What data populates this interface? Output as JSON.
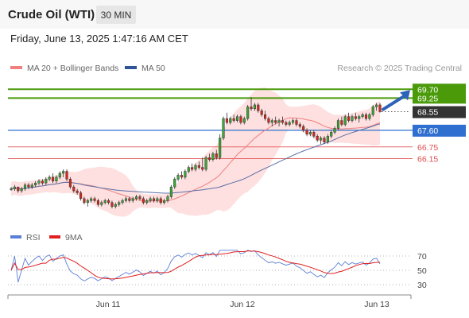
{
  "header": {
    "title": "Crude Oil (WTI)",
    "timeframe_label": "30 MIN",
    "datetime": "Friday, June 13, 2025 1:47:16 AM CET"
  },
  "legend": {
    "ma20_label": "MA 20 + Bollinger Bands",
    "ma50_label": "MA 50",
    "copyright": "Research © 2025 Trading Central"
  },
  "colors": {
    "accent_green": "#4a9a0a",
    "support_blue": "#2f6fcf",
    "resistance_red": "#e05050",
    "current_price": "#333333",
    "arrow": "#2d62b8",
    "bollinger": "#fde0df",
    "ma20": "#f08080",
    "ma50": "#5a6fa8",
    "rsi": "#5b7fd6",
    "rsi_ma": "#e02020"
  },
  "chart_data": [
    {
      "type": "candlestick",
      "title": "Crude Oil (WTI)",
      "timeframe": "30 MIN",
      "x_ticks": [
        "Jun 11",
        "Jun 12",
        "Jun 13"
      ],
      "price_levels": [
        {
          "label": "69.70",
          "value": 69.7,
          "kind": "target",
          "color": "#4a9a0a"
        },
        {
          "label": "69.25",
          "value": 69.25,
          "kind": "target",
          "color": "#4a9a0a"
        },
        {
          "label": "68.55",
          "value": 68.55,
          "kind": "current",
          "color": "#333333"
        },
        {
          "label": "67.60",
          "value": 67.6,
          "kind": "pivot",
          "color": "#2f6fcf"
        },
        {
          "label": "66.75",
          "value": 66.75,
          "kind": "support",
          "color": "#e05050"
        },
        {
          "label": "66.15",
          "value": 66.15,
          "kind": "support",
          "color": "#e05050"
        }
      ],
      "series": [
        {
          "name": "MA 20 + Bollinger Bands",
          "kind": "ma20_bollinger"
        },
        {
          "name": "MA 50",
          "kind": "ma50"
        }
      ],
      "candles": [
        [
          64.6,
          64.7,
          64.5,
          64.6
        ],
        [
          64.6,
          64.8,
          64.5,
          64.7
        ],
        [
          64.7,
          64.7,
          64.4,
          64.5
        ],
        [
          64.5,
          64.7,
          64.4,
          64.6
        ],
        [
          64.6,
          64.9,
          64.5,
          64.8
        ],
        [
          64.8,
          64.9,
          64.6,
          64.7
        ],
        [
          64.7,
          64.9,
          64.6,
          64.8
        ],
        [
          64.8,
          65.0,
          64.7,
          64.9
        ],
        [
          64.9,
          65.1,
          64.8,
          65.0
        ],
        [
          65.0,
          65.1,
          64.8,
          64.9
        ],
        [
          64.9,
          65.2,
          64.8,
          65.1
        ],
        [
          65.1,
          65.3,
          65.0,
          65.2
        ],
        [
          65.2,
          65.4,
          64.9,
          65.0
        ],
        [
          65.0,
          65.3,
          64.9,
          65.2
        ],
        [
          65.2,
          65.5,
          65.1,
          65.4
        ],
        [
          65.4,
          65.6,
          65.2,
          65.5
        ],
        [
          65.5,
          65.6,
          65.0,
          65.1
        ],
        [
          65.1,
          65.2,
          64.6,
          64.7
        ],
        [
          64.7,
          64.8,
          64.4,
          64.5
        ],
        [
          64.5,
          64.6,
          64.3,
          64.4
        ],
        [
          64.4,
          64.5,
          64.0,
          64.1
        ],
        [
          64.1,
          64.2,
          63.8,
          63.9
        ],
        [
          63.9,
          64.1,
          63.7,
          64.0
        ],
        [
          64.0,
          64.2,
          63.9,
          64.1
        ],
        [
          64.1,
          64.2,
          63.9,
          64.0
        ],
        [
          64.0,
          64.1,
          63.7,
          63.8
        ],
        [
          63.8,
          64.0,
          63.7,
          63.9
        ],
        [
          63.9,
          64.1,
          63.8,
          64.0
        ],
        [
          64.0,
          64.1,
          63.8,
          63.9
        ],
        [
          63.9,
          64.0,
          63.6,
          63.7
        ],
        [
          63.7,
          63.9,
          63.6,
          63.8
        ],
        [
          63.8,
          64.0,
          63.7,
          63.9
        ],
        [
          63.9,
          64.1,
          63.8,
          64.0
        ],
        [
          64.0,
          64.2,
          63.9,
          64.1
        ],
        [
          64.1,
          64.2,
          63.9,
          64.0
        ],
        [
          64.0,
          64.2,
          63.9,
          64.1
        ],
        [
          64.1,
          64.3,
          64.0,
          64.2
        ],
        [
          64.2,
          64.3,
          64.0,
          64.1
        ],
        [
          64.1,
          64.2,
          63.8,
          63.9
        ],
        [
          63.9,
          64.1,
          63.8,
          64.0
        ],
        [
          64.0,
          64.2,
          63.9,
          64.1
        ],
        [
          64.1,
          64.2,
          63.9,
          64.0
        ],
        [
          64.0,
          64.2,
          63.9,
          64.1
        ],
        [
          64.1,
          64.2,
          63.8,
          63.9
        ],
        [
          63.9,
          64.1,
          63.8,
          64.0
        ],
        [
          64.0,
          64.3,
          63.9,
          64.2
        ],
        [
          64.2,
          64.8,
          64.1,
          64.7
        ],
        [
          64.7,
          65.2,
          64.6,
          65.1
        ],
        [
          65.1,
          65.4,
          65.0,
          65.3
        ],
        [
          65.3,
          65.5,
          65.1,
          65.2
        ],
        [
          65.2,
          65.6,
          65.1,
          65.5
        ],
        [
          65.5,
          65.8,
          65.4,
          65.7
        ],
        [
          65.7,
          65.9,
          65.5,
          65.6
        ],
        [
          65.6,
          65.9,
          65.5,
          65.8
        ],
        [
          65.8,
          66.0,
          65.6,
          65.7
        ],
        [
          65.7,
          66.2,
          65.5,
          65.6
        ],
        [
          65.6,
          66.3,
          65.5,
          66.2
        ],
        [
          66.2,
          66.4,
          66.0,
          66.1
        ],
        [
          66.1,
          66.5,
          66.0,
          66.4
        ],
        [
          66.4,
          66.6,
          66.1,
          66.2
        ],
        [
          66.2,
          67.4,
          66.1,
          67.2
        ],
        [
          67.2,
          68.3,
          67.1,
          68.2
        ],
        [
          68.2,
          68.5,
          67.9,
          68.0
        ],
        [
          68.0,
          68.3,
          67.9,
          68.2
        ],
        [
          68.2,
          68.4,
          68.0,
          68.1
        ],
        [
          68.1,
          68.4,
          68.0,
          68.3
        ],
        [
          68.3,
          68.4,
          67.9,
          68.0
        ],
        [
          68.0,
          68.3,
          67.9,
          68.2
        ],
        [
          68.2,
          68.9,
          68.1,
          68.8
        ],
        [
          68.8,
          69.3,
          68.6,
          68.7
        ],
        [
          68.7,
          69.0,
          68.6,
          68.9
        ],
        [
          68.9,
          69.0,
          68.5,
          68.6
        ],
        [
          68.6,
          68.7,
          68.3,
          68.4
        ],
        [
          68.4,
          68.6,
          68.1,
          68.2
        ],
        [
          68.2,
          68.3,
          67.9,
          68.0
        ],
        [
          68.0,
          68.2,
          67.8,
          68.1
        ],
        [
          68.1,
          68.3,
          67.9,
          68.0
        ],
        [
          68.0,
          68.2,
          67.8,
          68.1
        ],
        [
          68.1,
          68.3,
          67.9,
          68.0
        ],
        [
          68.0,
          68.1,
          67.8,
          67.9
        ],
        [
          67.9,
          68.1,
          67.8,
          68.0
        ],
        [
          68.0,
          68.2,
          67.9,
          68.1
        ],
        [
          68.1,
          68.2,
          67.8,
          67.9
        ],
        [
          67.9,
          68.0,
          67.7,
          67.8
        ],
        [
          67.8,
          67.9,
          67.5,
          67.6
        ],
        [
          67.6,
          67.7,
          67.3,
          67.4
        ],
        [
          67.4,
          67.6,
          67.3,
          67.5
        ],
        [
          67.5,
          67.6,
          67.2,
          67.3
        ],
        [
          67.3,
          67.4,
          67.0,
          67.1
        ],
        [
          67.1,
          67.3,
          66.9,
          67.2
        ],
        [
          67.2,
          67.3,
          66.9,
          67.0
        ],
        [
          67.0,
          67.4,
          66.9,
          67.3
        ],
        [
          67.3,
          67.6,
          67.2,
          67.5
        ],
        [
          67.5,
          67.8,
          67.4,
          67.7
        ],
        [
          67.7,
          68.2,
          67.6,
          68.1
        ],
        [
          68.1,
          68.3,
          67.8,
          67.9
        ],
        [
          67.9,
          68.4,
          67.8,
          68.3
        ],
        [
          68.3,
          68.5,
          68.0,
          68.1
        ],
        [
          68.1,
          68.4,
          68.0,
          68.3
        ],
        [
          68.3,
          68.5,
          68.1,
          68.2
        ],
        [
          68.2,
          68.4,
          68.0,
          68.3
        ],
        [
          68.3,
          68.5,
          68.2,
          68.4
        ],
        [
          68.4,
          68.5,
          68.1,
          68.2
        ],
        [
          68.2,
          68.5,
          68.1,
          68.4
        ],
        [
          68.4,
          68.9,
          68.3,
          68.8
        ],
        [
          68.8,
          69.0,
          68.6,
          68.9
        ],
        [
          68.9,
          69.0,
          68.5,
          68.55
        ]
      ]
    },
    {
      "type": "line",
      "title": "",
      "series": [
        {
          "name": "RSI",
          "color": "#5b7fd6"
        },
        {
          "name": "9MA",
          "color": "#e02020"
        }
      ],
      "y_ticks": [
        70,
        50,
        30
      ],
      "ylim": [
        20,
        80
      ],
      "x_ticks": [
        "Jun 11",
        "Jun 12",
        "Jun 13"
      ]
    }
  ]
}
